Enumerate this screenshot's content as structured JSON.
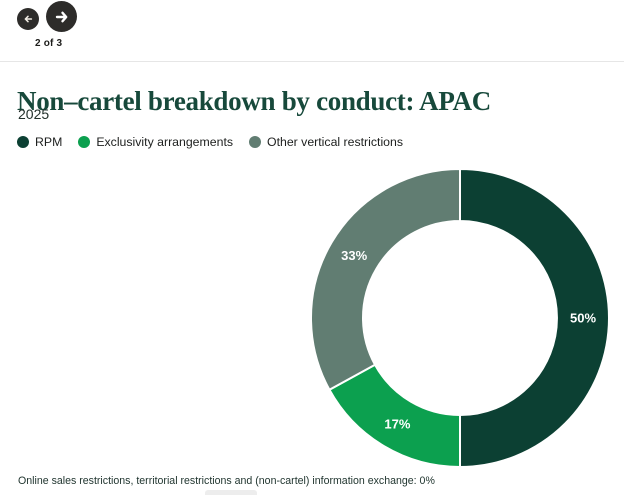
{
  "nav": {
    "back_label": "previous chart",
    "forward_label": "next chart",
    "page_indicator": "2 of 3"
  },
  "header": {
    "title": "Non–cartel breakdown by conduct: APAC",
    "subtitle": "2025"
  },
  "chart_data": {
    "type": "pie",
    "donut": true,
    "start_angle_deg": 0,
    "direction": "clockwise",
    "title": "Non–cartel breakdown by conduct: APAC",
    "year": "2025",
    "legend_position": "top-left",
    "outer_radius": 149,
    "inner_radius": 97,
    "series": [
      {
        "name": "RPM",
        "value": 50,
        "label": "50%",
        "color": "#0c4033"
      },
      {
        "name": "Exclusivity arrangements",
        "value": 17,
        "label": "17%",
        "color": "#0ca04f"
      },
      {
        "name": "Other vertical restrictions",
        "value": 33,
        "label": "33%",
        "color": "#617d72"
      }
    ],
    "footnote": "Online sales restrictions, territorial restrictions and (non-cartel) information exchange: 0%"
  },
  "footer": {
    "note": "Online sales restrictions, territorial restrictions and (non-cartel) information exchange: 0%"
  },
  "colors": {
    "nav_button": "#2d2c2a",
    "title": "#17493b",
    "divider": "#e6e6e6",
    "slice_separator": "#ffffff"
  }
}
